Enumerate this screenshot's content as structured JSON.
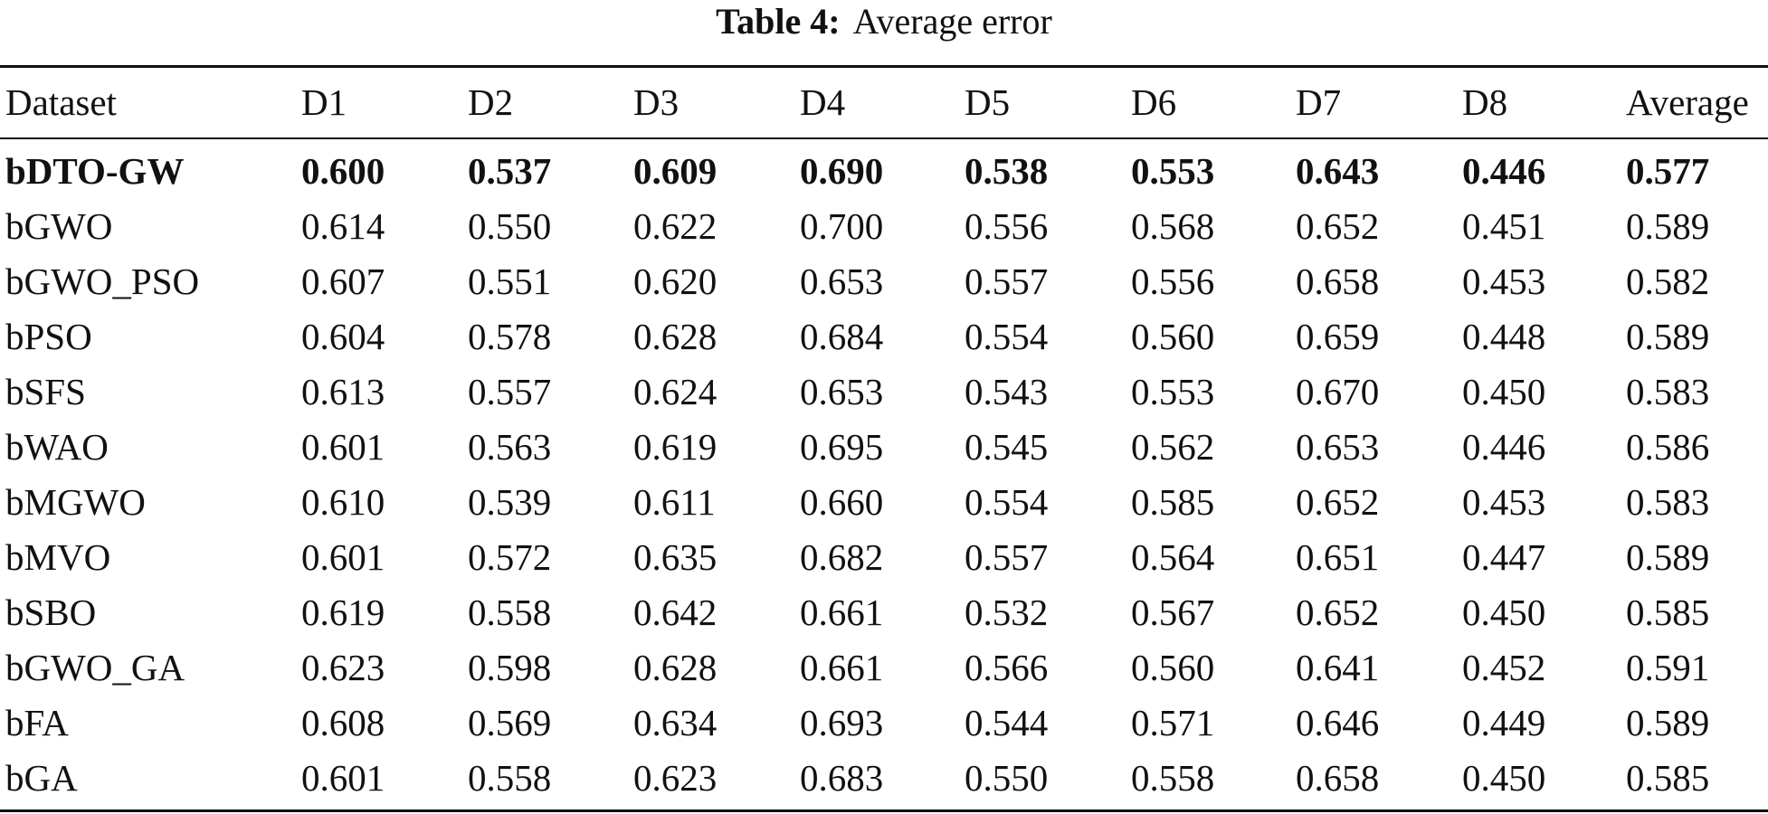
{
  "caption": {
    "label": "Table 4:",
    "title": "Average error"
  },
  "table": {
    "columns": [
      "Dataset",
      "D1",
      "D2",
      "D3",
      "D4",
      "D5",
      "D6",
      "D7",
      "D8",
      "Average"
    ],
    "rows": [
      [
        "bDTO-GW",
        "0.600",
        "0.537",
        "0.609",
        "0.690",
        "0.538",
        "0.553",
        "0.643",
        "0.446",
        "0.577"
      ],
      [
        "bGWO",
        "0.614",
        "0.550",
        "0.622",
        "0.700",
        "0.556",
        "0.568",
        "0.652",
        "0.451",
        "0.589"
      ],
      [
        "bGWO_PSO",
        "0.607",
        "0.551",
        "0.620",
        "0.653",
        "0.557",
        "0.556",
        "0.658",
        "0.453",
        "0.582"
      ],
      [
        "bPSO",
        "0.604",
        "0.578",
        "0.628",
        "0.684",
        "0.554",
        "0.560",
        "0.659",
        "0.448",
        "0.589"
      ],
      [
        "bSFS",
        "0.613",
        "0.557",
        "0.624",
        "0.653",
        "0.543",
        "0.553",
        "0.670",
        "0.450",
        "0.583"
      ],
      [
        "bWAO",
        "0.601",
        "0.563",
        "0.619",
        "0.695",
        "0.545",
        "0.562",
        "0.653",
        "0.446",
        "0.586"
      ],
      [
        "bMGWO",
        "0.610",
        "0.539",
        "0.611",
        "0.660",
        "0.554",
        "0.585",
        "0.652",
        "0.453",
        "0.583"
      ],
      [
        "bMVO",
        "0.601",
        "0.572",
        "0.635",
        "0.682",
        "0.557",
        "0.564",
        "0.651",
        "0.447",
        "0.589"
      ],
      [
        "bSBO",
        "0.619",
        "0.558",
        "0.642",
        "0.661",
        "0.532",
        "0.567",
        "0.652",
        "0.450",
        "0.585"
      ],
      [
        "bGWO_GA",
        "0.623",
        "0.598",
        "0.628",
        "0.661",
        "0.566",
        "0.560",
        "0.641",
        "0.452",
        "0.591"
      ],
      [
        "bFA",
        "0.608",
        "0.569",
        "0.634",
        "0.693",
        "0.544",
        "0.571",
        "0.646",
        "0.449",
        "0.589"
      ],
      [
        "bGA",
        "0.601",
        "0.558",
        "0.623",
        "0.683",
        "0.550",
        "0.558",
        "0.658",
        "0.450",
        "0.585"
      ]
    ]
  }
}
